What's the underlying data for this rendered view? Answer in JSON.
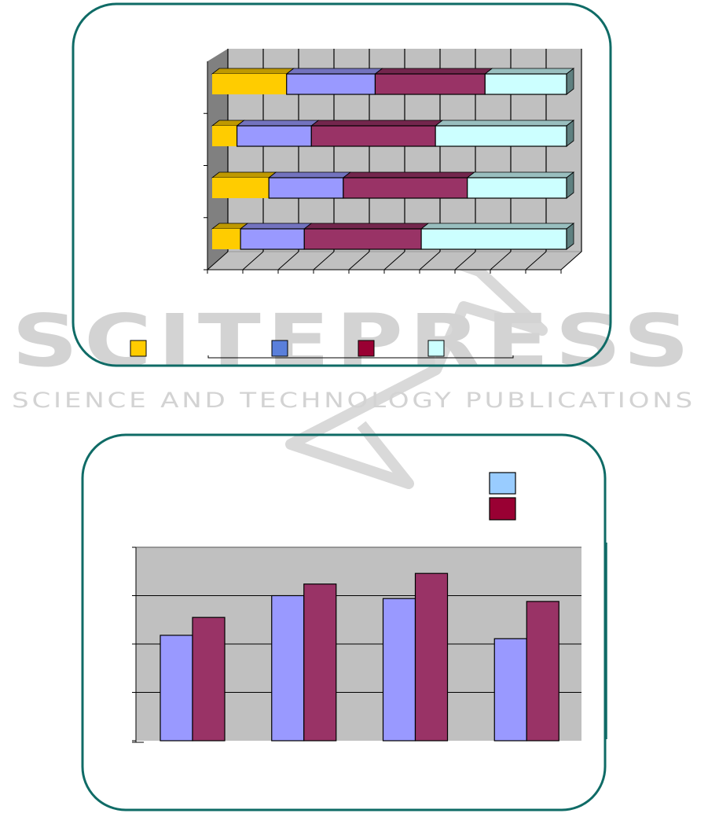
{
  "watermark": {
    "logo": "SCITEPRESS",
    "tagline": "SCIENCE AND TECHNOLOGY PUBLICATIONS"
  },
  "frame_color": "#0f6b66",
  "chart_data": [
    {
      "type": "bar",
      "orientation": "horizontal",
      "stacked": "percent",
      "three_d": true,
      "xlim": [
        0,
        100
      ],
      "grid": true,
      "legend_position": "bottom",
      "categories": [
        "",
        "",
        "",
        ""
      ],
      "series": [
        {
          "color": "#FFCC00",
          "legend_color": "#FFCC00",
          "values": [
            8,
            16,
            7,
            21
          ]
        },
        {
          "color": "#9999FF",
          "legend_color": "#5A7FDB",
          "values": [
            18,
            21,
            21,
            25
          ]
        },
        {
          "color": "#993366",
          "legend_color": "#990033",
          "values": [
            33,
            35,
            35,
            31
          ]
        },
        {
          "color": "#CCFFFF",
          "legend_color": "#CCFFFF",
          "values": [
            41,
            28,
            37,
            23
          ]
        }
      ]
    },
    {
      "type": "bar",
      "orientation": "vertical",
      "ylim": [
        0,
        4
      ],
      "grid": true,
      "legend_position": "top-right",
      "categories": [
        "",
        "",
        "",
        ""
      ],
      "series": [
        {
          "color": "#9999FF",
          "legend_color": "#99CCFF",
          "values": [
            2.18,
            3.0,
            2.94,
            2.11
          ]
        },
        {
          "color": "#993366",
          "legend_color": "#990033",
          "values": [
            2.55,
            3.24,
            3.46,
            2.88
          ]
        }
      ]
    }
  ]
}
